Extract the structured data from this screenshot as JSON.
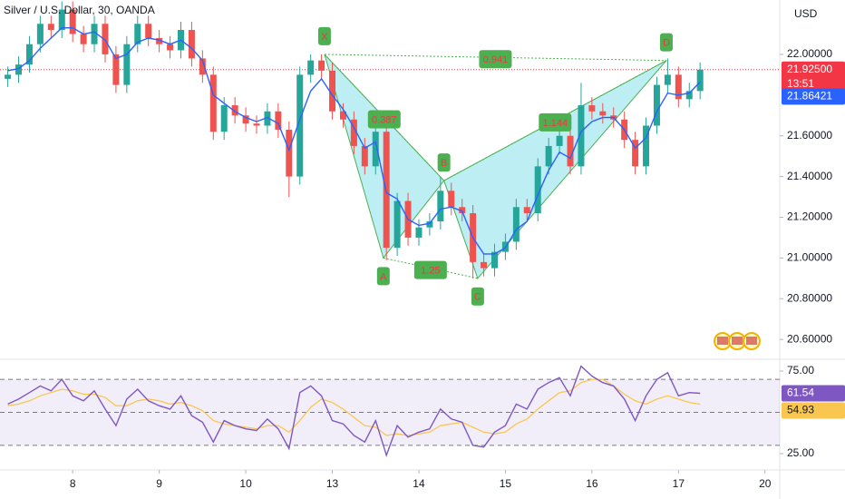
{
  "chart_data": {
    "type": "candlestick",
    "title": "Silver / U.S. Dollar, 30, OANDA",
    "y_axis_label": "USD",
    "up_color": "#26a69a",
    "down_color": "#ef5350",
    "x": [
      0.25,
      0.375,
      0.5,
      0.625,
      0.75,
      0.875,
      1,
      1.125,
      1.25,
      1.375,
      1.5,
      1.625,
      1.75,
      1.875,
      2,
      2.125,
      2.25,
      2.375,
      2.5,
      2.625,
      2.75,
      2.875,
      3,
      3.125,
      3.25,
      3.375,
      3.5,
      3.625,
      3.75,
      3.875,
      4,
      4.125,
      4.25,
      4.375,
      4.5,
      4.625,
      4.75,
      4.875,
      5,
      5.125,
      5.25,
      5.375,
      5.5,
      5.625,
      5.75,
      5.875,
      6,
      6.125,
      6.25,
      6.375,
      6.5,
      6.625,
      6.75,
      6.875,
      7,
      7.125,
      7.25,
      7.375,
      7.5,
      7.625,
      7.75,
      7.875,
      8,
      8.125,
      8.25
    ],
    "open": [
      21.88,
      21.9,
      21.95,
      22.05,
      22.15,
      22.12,
      22.22,
      22.1,
      22.05,
      22.15,
      22.0,
      21.85,
      22.05,
      22.15,
      22.08,
      22.05,
      22.02,
      22.12,
      21.98,
      21.9,
      21.62,
      21.75,
      21.7,
      21.66,
      21.65,
      21.72,
      21.63,
      21.4,
      21.9,
      21.97,
      21.92,
      21.72,
      21.68,
      21.55,
      21.45,
      21.62,
      21.05,
      21.28,
      21.1,
      21.15,
      21.18,
      21.33,
      21.25,
      21.22,
      20.98,
      20.95,
      21.03,
      21.08,
      21.25,
      21.22,
      21.45,
      21.55,
      21.6,
      21.45,
      21.75,
      21.72,
      21.7,
      21.68,
      21.58,
      21.45,
      21.65,
      21.85,
      21.9,
      21.78,
      21.82
    ],
    "high": [
      21.94,
      21.99,
      22.09,
      22.19,
      22.19,
      22.26,
      22.26,
      22.14,
      22.19,
      22.19,
      22.04,
      22.09,
      22.19,
      22.19,
      22.12,
      22.09,
      22.16,
      22.16,
      22.02,
      21.94,
      21.79,
      21.79,
      21.74,
      21.7,
      21.76,
      21.76,
      21.67,
      21.94,
      22.0,
      22.0,
      21.96,
      21.76,
      21.72,
      21.59,
      21.66,
      21.66,
      21.32,
      21.32,
      21.19,
      21.22,
      21.4,
      21.37,
      21.29,
      21.26,
      21.02,
      21.07,
      21.12,
      21.29,
      21.29,
      21.49,
      21.59,
      21.64,
      21.64,
      21.86,
      21.79,
      21.76,
      21.74,
      21.72,
      21.62,
      21.69,
      21.89,
      21.98,
      21.94,
      21.86,
      21.96
    ],
    "low": [
      21.84,
      21.86,
      21.91,
      22.01,
      22.08,
      22.08,
      22.06,
      22.01,
      22.01,
      21.96,
      21.81,
      21.81,
      22.01,
      22.04,
      22.01,
      21.98,
      21.98,
      21.94,
      21.86,
      21.58,
      21.58,
      21.66,
      21.62,
      21.61,
      21.61,
      21.59,
      21.3,
      21.36,
      21.86,
      21.88,
      21.68,
      21.64,
      21.51,
      21.41,
      21.41,
      20.99,
      21.01,
      21.06,
      21.06,
      21.11,
      21.14,
      21.21,
      21.18,
      20.9,
      20.91,
      20.91,
      20.99,
      21.04,
      21.18,
      21.18,
      21.41,
      21.51,
      21.41,
      21.41,
      21.68,
      21.66,
      21.64,
      21.54,
      21.41,
      21.41,
      21.61,
      21.81,
      21.74,
      21.74,
      21.78
    ],
    "close": [
      21.9,
      21.95,
      22.05,
      22.15,
      22.12,
      22.22,
      22.1,
      22.05,
      22.15,
      22.0,
      21.85,
      22.05,
      22.15,
      22.08,
      22.05,
      22.02,
      22.12,
      21.98,
      21.9,
      21.62,
      21.75,
      21.7,
      21.66,
      21.65,
      21.72,
      21.63,
      21.4,
      21.9,
      21.97,
      21.92,
      21.72,
      21.68,
      21.55,
      21.45,
      21.62,
      21.05,
      21.28,
      21.1,
      21.15,
      21.18,
      21.33,
      21.25,
      21.22,
      20.98,
      20.95,
      21.03,
      21.08,
      21.25,
      21.22,
      21.45,
      21.55,
      21.6,
      21.45,
      21.75,
      21.72,
      21.7,
      21.68,
      21.58,
      21.45,
      21.65,
      21.85,
      21.9,
      21.78,
      21.82,
      21.925
    ],
    "xlim": [
      0.16,
      9.17
    ],
    "xticks": [
      {
        "value": 1,
        "label": "8"
      },
      {
        "value": 2,
        "label": "9"
      },
      {
        "value": 3,
        "label": "10"
      },
      {
        "value": 4,
        "label": "13"
      },
      {
        "value": 5,
        "label": "14"
      },
      {
        "value": 6,
        "label": "15"
      },
      {
        "value": 7,
        "label": "16"
      },
      {
        "value": 8,
        "label": "17"
      },
      {
        "value": 9,
        "label": "20"
      }
    ],
    "ylim": [
      20.507,
      22.267
    ],
    "yticks": [
      {
        "value": 20.6,
        "label": "20.60000"
      },
      {
        "value": 20.8,
        "label": "20.80000"
      },
      {
        "value": 21,
        "label": "21.00000"
      },
      {
        "value": 21.2,
        "label": "21.20000"
      },
      {
        "value": 21.4,
        "label": "21.40000"
      },
      {
        "value": 21.6,
        "label": "21.60000"
      },
      {
        "value": 22,
        "label": "22.00000"
      }
    ],
    "moving_average": {
      "color": "#2962ff",
      "values": [
        21.92,
        21.93,
        21.97,
        22.03,
        22.08,
        22.13,
        22.13,
        22.1,
        22.11,
        22.07,
        21.98,
        22.0,
        22.06,
        22.08,
        22.07,
        22.05,
        22.07,
        22.03,
        21.97,
        21.8,
        21.76,
        21.72,
        21.69,
        21.67,
        21.69,
        21.66,
        21.53,
        21.68,
        21.82,
        21.88,
        21.8,
        21.73,
        21.64,
        21.54,
        21.57,
        21.32,
        21.29,
        21.19,
        21.16,
        21.17,
        21.24,
        21.25,
        21.23,
        21.1,
        21.02,
        21.02,
        21.05,
        21.14,
        21.18,
        21.31,
        21.43,
        21.52,
        21.49,
        21.62,
        21.67,
        21.69,
        21.69,
        21.63,
        21.54,
        21.59,
        21.72,
        21.81,
        21.8,
        21.81,
        21.86421
      ]
    },
    "last_price": {
      "value": 21.925,
      "label": "21.92500",
      "color": "#f23645"
    },
    "countdown": "13:51",
    "pattern": {
      "fill": "#b2ebf2",
      "stroke": "#4caf50",
      "points": [
        {
          "label": "X",
          "x": 3.91,
          "price": 22.0
        },
        {
          "label": "A",
          "x": 4.59,
          "price": 21.0
        },
        {
          "label": "B",
          "x": 5.29,
          "price": 21.38
        },
        {
          "label": "C",
          "x": 5.68,
          "price": 20.9
        },
        {
          "label": "D",
          "x": 7.86,
          "price": 21.97
        }
      ],
      "ratios": [
        0.941,
        0.387,
        1.25,
        1.144
      ]
    },
    "rsi": {
      "ylim": [
        15.1,
        81.6
      ],
      "yticks": [
        {
          "value": 75,
          "label": "75.00"
        },
        {
          "value": 25,
          "label": "25.00"
        }
      ],
      "levels": [
        70,
        50,
        30
      ],
      "color": "#7e57c2",
      "values": [
        55,
        58,
        62,
        66,
        63,
        70,
        60,
        57,
        63,
        52,
        42,
        58,
        64,
        57,
        54,
        52,
        60,
        48,
        44,
        32,
        45,
        42,
        40,
        39,
        46,
        40,
        28,
        62,
        66,
        60,
        45,
        43,
        36,
        32,
        45,
        24,
        42,
        35,
        38,
        40,
        52,
        46,
        44,
        30,
        29,
        38,
        42,
        55,
        52,
        64,
        68,
        71,
        60,
        78,
        72,
        68,
        66,
        58,
        45,
        60,
        70,
        74,
        60,
        62,
        61.54
      ],
      "signal": {
        "color": "#f9c74f",
        "values": [
          54,
          55,
          57,
          60,
          62,
          64,
          63,
          61,
          61,
          59,
          54,
          54,
          57,
          58,
          57,
          55,
          56,
          54,
          51,
          45,
          43,
          42,
          41,
          40,
          42,
          42,
          38,
          45,
          53,
          58,
          56,
          52,
          47,
          42,
          41,
          36,
          37,
          36,
          37,
          38,
          42,
          43,
          44,
          41,
          38,
          37,
          38,
          43,
          46,
          52,
          57,
          62,
          63,
          68,
          70,
          70,
          66,
          61,
          57,
          55,
          58,
          60,
          58,
          56,
          54.93
        ]
      }
    }
  }
}
